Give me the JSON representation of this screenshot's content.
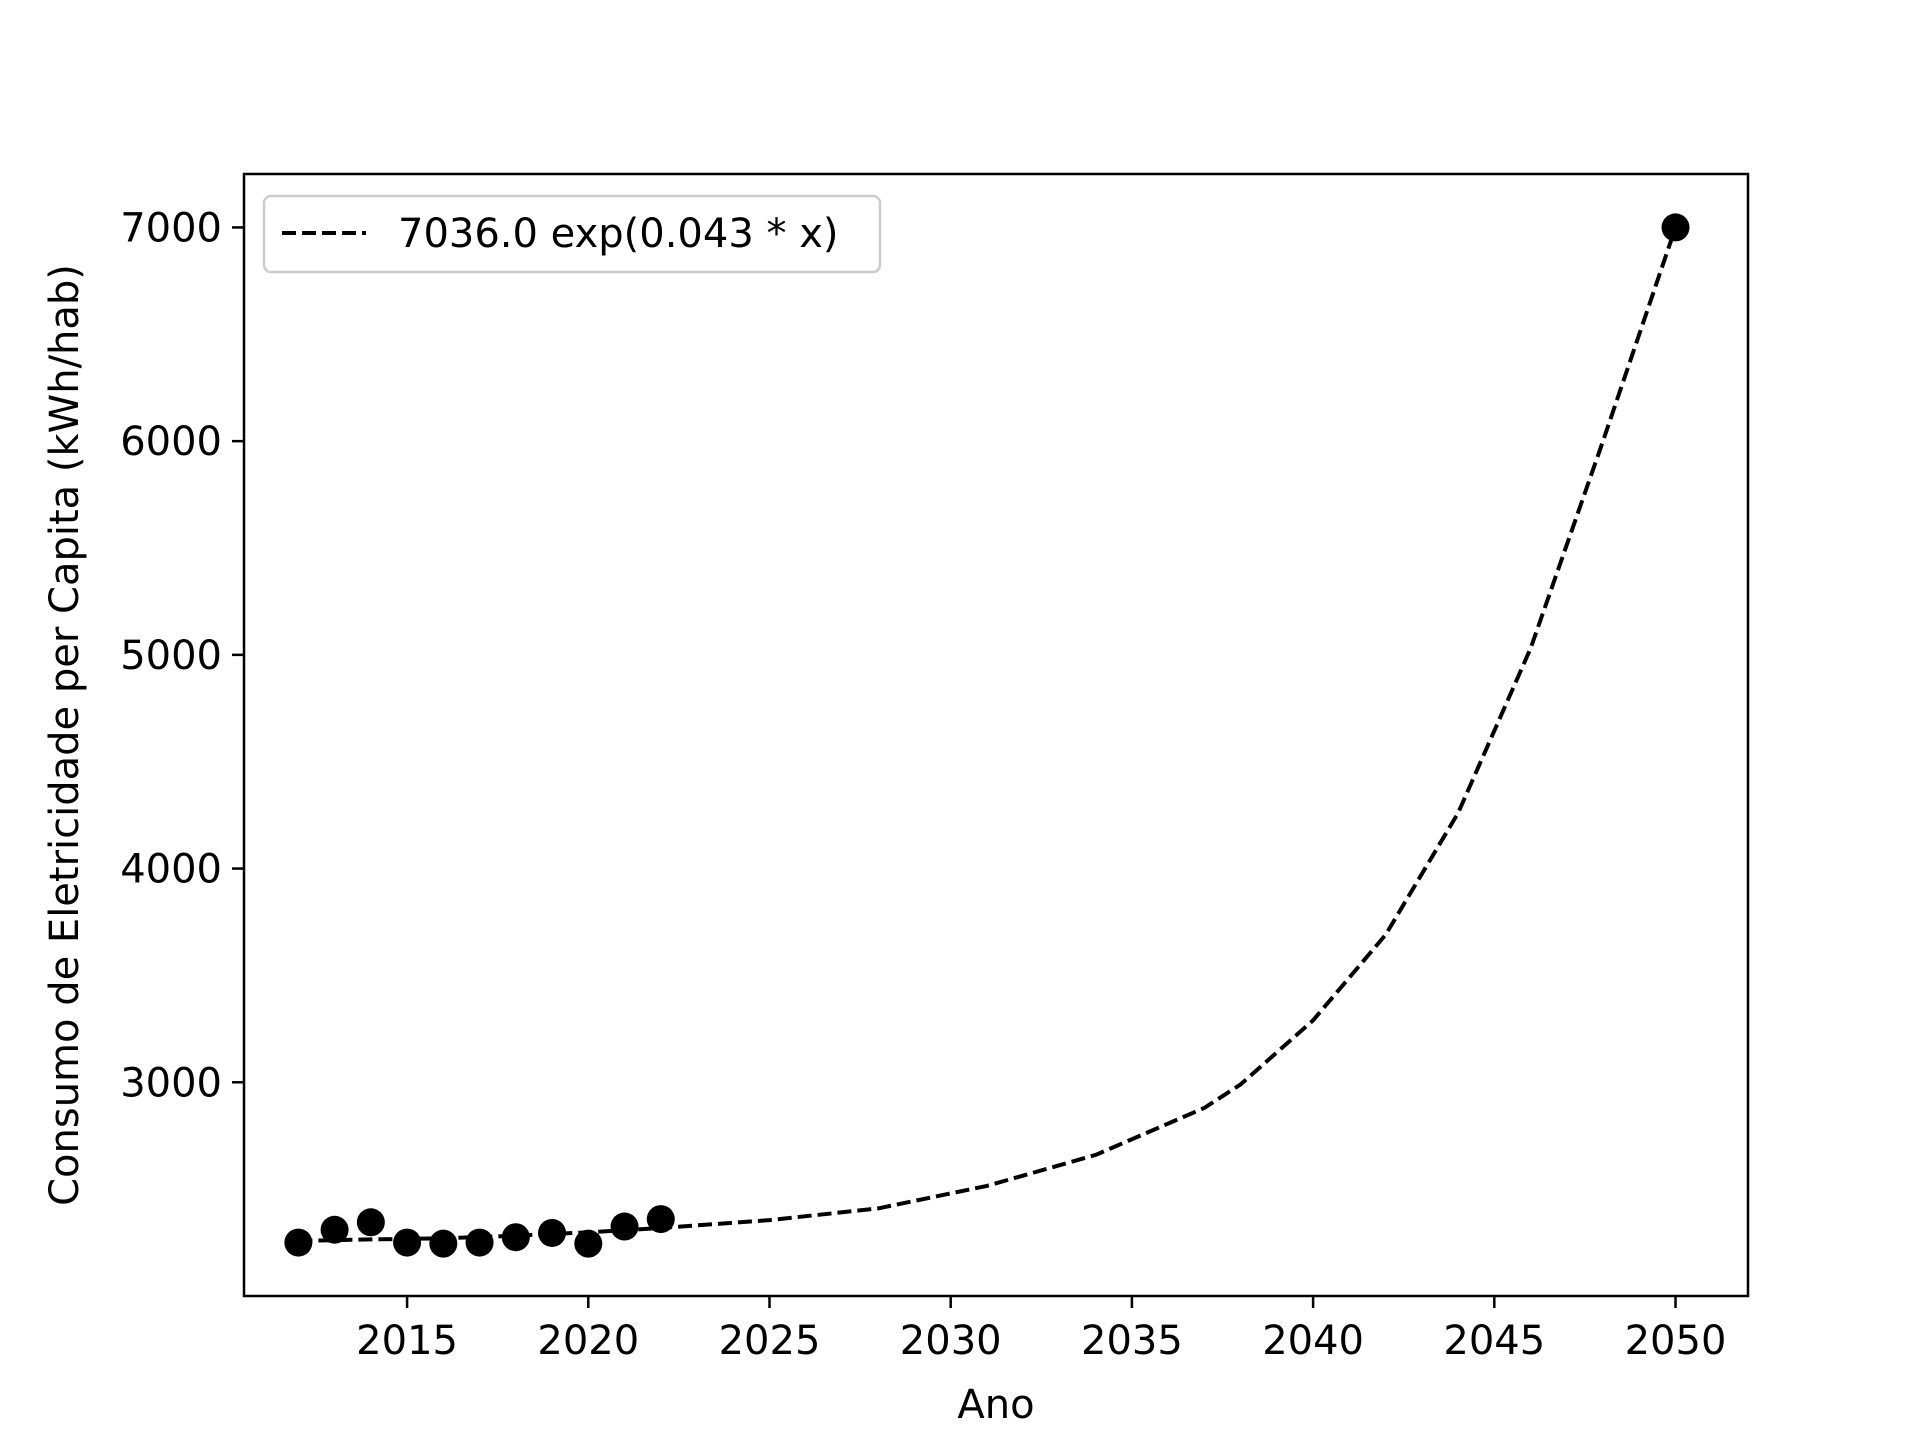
{
  "chart_data": {
    "type": "scatter",
    "title": "",
    "xlabel": "Ano",
    "ylabel": "Consumo de Eletricidade per Capita (kWh/hab)",
    "xlim": [
      2010.5,
      2052
    ],
    "ylim": [
      2000,
      7250
    ],
    "xticks": [
      2015,
      2020,
      2025,
      2030,
      2035,
      2040,
      2045,
      2050
    ],
    "yticks": [
      3000,
      4000,
      5000,
      6000,
      7000
    ],
    "grid": false,
    "legend": {
      "placement": "top-left",
      "entries": [
        "7036.0 exp(0.043 * x)"
      ]
    },
    "series": [
      {
        "kind": "scatter",
        "color": "#000000",
        "x": [
          2012,
          2013,
          2014,
          2015,
          2016,
          2017,
          2018,
          2019,
          2020,
          2021,
          2022,
          2050
        ],
        "y": [
          2250,
          2310,
          2345,
          2250,
          2245,
          2250,
          2275,
          2295,
          2245,
          2325,
          2360,
          7000
        ]
      },
      {
        "kind": "line",
        "name": "7036.0 exp(0.043 * x)",
        "style": "dashed",
        "color": "#000000",
        "x": [
          2012,
          2014,
          2016,
          2018,
          2020,
          2022,
          2025,
          2028,
          2031,
          2034,
          2037,
          2038,
          2040,
          2042,
          2044,
          2046,
          2048,
          2050
        ],
        "y": [
          2258,
          2265,
          2270,
          2282,
          2298,
          2318,
          2355,
          2410,
          2515,
          2660,
          2880,
          2990,
          3290,
          3690,
          4260,
          5030,
          6000,
          7000
        ]
      }
    ]
  }
}
